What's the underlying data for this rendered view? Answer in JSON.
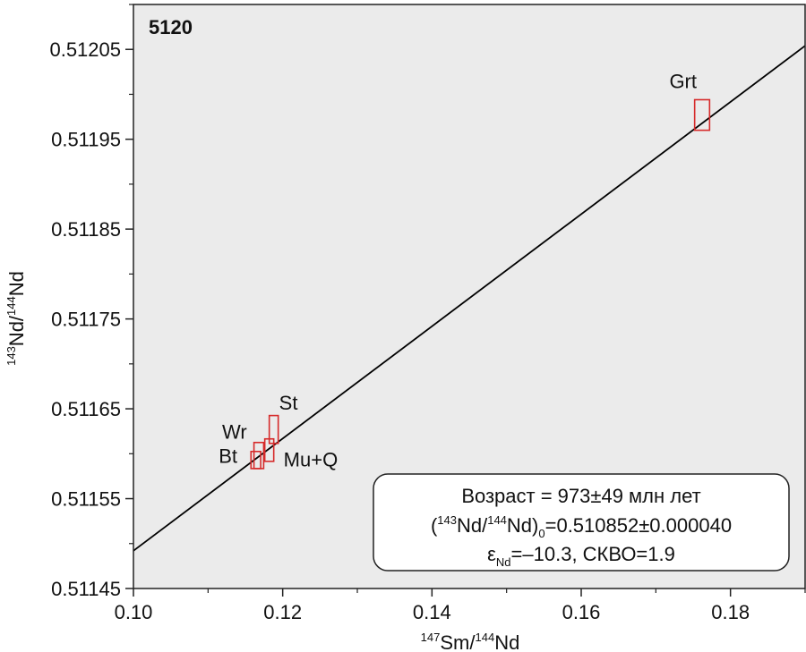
{
  "chart_data": {
    "type": "scatter",
    "title": "5120",
    "xlabel": {
      "sup1": "147",
      "main1": "Sm/",
      "sup2": "144",
      "main2": "Nd"
    },
    "ylabel": {
      "sup1": "143",
      "main1": "Nd/",
      "sup2": "144",
      "main2": "Nd"
    },
    "xlim": [
      0.1,
      0.19
    ],
    "ylim": [
      0.51145,
      0.5121
    ],
    "x_ticks": [
      "0.10",
      "0.12",
      "0.14",
      "0.16",
      "0.18"
    ],
    "y_ticks": [
      "0.51145",
      "0.51155",
      "0.51165",
      "0.51175",
      "0.51185",
      "0.51195",
      "0.51205"
    ],
    "points": [
      {
        "name": "Bt",
        "x": 0.1168,
        "y": 0.511598,
        "dx": 0.0013,
        "dy": 2.9e-05
      },
      {
        "name": "Wr",
        "x": 0.1164,
        "y": 0.511593,
        "dx": 0.0013,
        "dy": 1.9e-05
      },
      {
        "name": "Mu+Q",
        "x": 0.1182,
        "y": 0.511604,
        "dx": 0.0012,
        "dy": 2.5e-05
      },
      {
        "name": "St",
        "x": 0.1188,
        "y": 0.511627,
        "dx": 0.0012,
        "dy": 3.1e-05
      },
      {
        "name": "Grt",
        "x": 0.1762,
        "y": 0.511977,
        "dx": 0.002,
        "dy": 3.4e-05
      }
    ],
    "isochron": {
      "x": [
        0.1,
        0.19
      ],
      "y": [
        0.511492,
        0.512054
      ]
    },
    "colors": {
      "plot_bg": "#ebebeb",
      "point_box": "#d62a2a",
      "line": "#000000"
    }
  },
  "info_box": {
    "line1": "Возраст = 973±49 млн лет",
    "line2": {
      "open": "(",
      "sup1": "143",
      "main1": "Nd/",
      "sup2": "144",
      "main2": "Nd)",
      "sub": "0",
      "rest": "=0.510852±0.000040"
    },
    "line3": {
      "eps": "ε",
      "sub": "Nd",
      "rest": "=–10.3, СКВО=1.9"
    }
  }
}
